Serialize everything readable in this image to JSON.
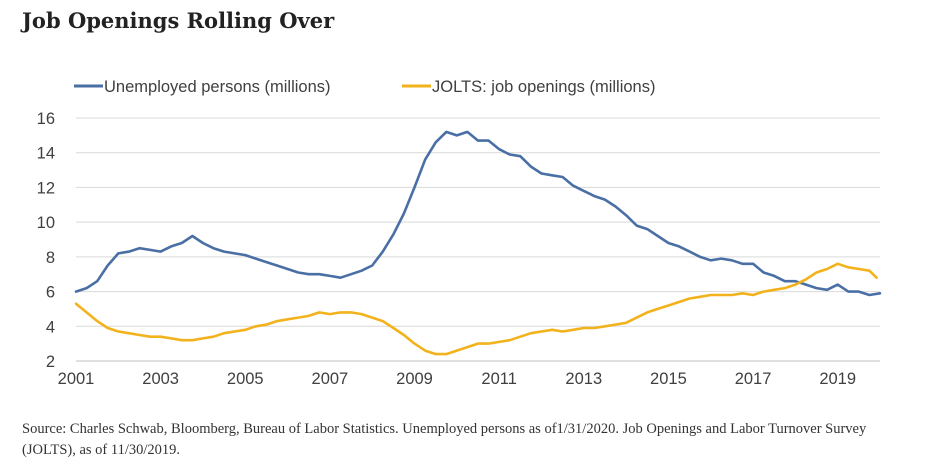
{
  "page": {
    "title": "Job Openings Rolling Over",
    "source": "Source: Charles Schwab, Bloomberg, Bureau of Labor Statistics. Unemployed persons as of1/31/2020.  Job Openings and Labor Turnover Survey (JOLTS), as of 11/30/2019."
  },
  "colors": {
    "unemployed": "#4a6fa5",
    "jolts": "#f2b21c",
    "grid": "#d9d9d9",
    "axis_text": "#404040"
  },
  "chart_data": {
    "type": "line",
    "title": "Job Openings Rolling Over",
    "xlim": [
      2001,
      2020
    ],
    "ylim": [
      2,
      16
    ],
    "x_ticks": [
      2001,
      2003,
      2005,
      2007,
      2009,
      2011,
      2013,
      2015,
      2017,
      2019
    ],
    "x_tick_labels": [
      "2001",
      "2003",
      "2005",
      "2007",
      "2009",
      "2011",
      "2013",
      "2015",
      "2017",
      "2019"
    ],
    "y_ticks": [
      2,
      4,
      6,
      8,
      10,
      12,
      14,
      16
    ],
    "y_tick_labels": [
      "2",
      "4",
      "6",
      "8",
      "10",
      "12",
      "14",
      "16"
    ],
    "grid": "horizontal",
    "legend_position": "top-left",
    "series": [
      {
        "name": "Unemployed persons (millions)",
        "color": "#4a6fa5",
        "points": [
          [
            2001.0,
            6.0
          ],
          [
            2001.25,
            6.2
          ],
          [
            2001.5,
            6.6
          ],
          [
            2001.75,
            7.5
          ],
          [
            2002.0,
            8.2
          ],
          [
            2002.25,
            8.3
          ],
          [
            2002.5,
            8.5
          ],
          [
            2002.75,
            8.4
          ],
          [
            2003.0,
            8.3
          ],
          [
            2003.25,
            8.6
          ],
          [
            2003.5,
            8.8
          ],
          [
            2003.75,
            9.2
          ],
          [
            2004.0,
            8.8
          ],
          [
            2004.25,
            8.5
          ],
          [
            2004.5,
            8.3
          ],
          [
            2004.75,
            8.2
          ],
          [
            2005.0,
            8.1
          ],
          [
            2005.25,
            7.9
          ],
          [
            2005.5,
            7.7
          ],
          [
            2005.75,
            7.5
          ],
          [
            2006.0,
            7.3
          ],
          [
            2006.25,
            7.1
          ],
          [
            2006.5,
            7.0
          ],
          [
            2006.75,
            7.0
          ],
          [
            2007.0,
            6.9
          ],
          [
            2007.25,
            6.8
          ],
          [
            2007.5,
            7.0
          ],
          [
            2007.75,
            7.2
          ],
          [
            2008.0,
            7.5
          ],
          [
            2008.25,
            8.3
          ],
          [
            2008.5,
            9.3
          ],
          [
            2008.75,
            10.5
          ],
          [
            2009.0,
            12.0
          ],
          [
            2009.25,
            13.6
          ],
          [
            2009.5,
            14.6
          ],
          [
            2009.75,
            15.2
          ],
          [
            2010.0,
            15.0
          ],
          [
            2010.25,
            15.2
          ],
          [
            2010.5,
            14.7
          ],
          [
            2010.75,
            14.7
          ],
          [
            2011.0,
            14.2
          ],
          [
            2011.25,
            13.9
          ],
          [
            2011.5,
            13.8
          ],
          [
            2011.75,
            13.2
          ],
          [
            2012.0,
            12.8
          ],
          [
            2012.25,
            12.7
          ],
          [
            2012.5,
            12.6
          ],
          [
            2012.75,
            12.1
          ],
          [
            2013.0,
            11.8
          ],
          [
            2013.25,
            11.5
          ],
          [
            2013.5,
            11.3
          ],
          [
            2013.75,
            10.9
          ],
          [
            2014.0,
            10.4
          ],
          [
            2014.25,
            9.8
          ],
          [
            2014.5,
            9.6
          ],
          [
            2014.75,
            9.2
          ],
          [
            2015.0,
            8.8
          ],
          [
            2015.25,
            8.6
          ],
          [
            2015.5,
            8.3
          ],
          [
            2015.75,
            8.0
          ],
          [
            2016.0,
            7.8
          ],
          [
            2016.25,
            7.9
          ],
          [
            2016.5,
            7.8
          ],
          [
            2016.75,
            7.6
          ],
          [
            2017.0,
            7.6
          ],
          [
            2017.25,
            7.1
          ],
          [
            2017.5,
            6.9
          ],
          [
            2017.75,
            6.6
          ],
          [
            2018.0,
            6.6
          ],
          [
            2018.25,
            6.4
          ],
          [
            2018.5,
            6.2
          ],
          [
            2018.75,
            6.1
          ],
          [
            2019.0,
            6.4
          ],
          [
            2019.25,
            6.0
          ],
          [
            2019.5,
            6.0
          ],
          [
            2019.75,
            5.8
          ],
          [
            2020.0,
            5.9
          ]
        ]
      },
      {
        "name": "JOLTS: job openings (millions)",
        "color": "#f2b21c",
        "points": [
          [
            2001.0,
            5.3
          ],
          [
            2001.25,
            4.8
          ],
          [
            2001.5,
            4.3
          ],
          [
            2001.75,
            3.9
          ],
          [
            2002.0,
            3.7
          ],
          [
            2002.25,
            3.6
          ],
          [
            2002.5,
            3.5
          ],
          [
            2002.75,
            3.4
          ],
          [
            2003.0,
            3.4
          ],
          [
            2003.25,
            3.3
          ],
          [
            2003.5,
            3.2
          ],
          [
            2003.75,
            3.2
          ],
          [
            2004.0,
            3.3
          ],
          [
            2004.25,
            3.4
          ],
          [
            2004.5,
            3.6
          ],
          [
            2004.75,
            3.7
          ],
          [
            2005.0,
            3.8
          ],
          [
            2005.25,
            4.0
          ],
          [
            2005.5,
            4.1
          ],
          [
            2005.75,
            4.3
          ],
          [
            2006.0,
            4.4
          ],
          [
            2006.25,
            4.5
          ],
          [
            2006.5,
            4.6
          ],
          [
            2006.75,
            4.8
          ],
          [
            2007.0,
            4.7
          ],
          [
            2007.25,
            4.8
          ],
          [
            2007.5,
            4.8
          ],
          [
            2007.75,
            4.7
          ],
          [
            2008.0,
            4.5
          ],
          [
            2008.25,
            4.3
          ],
          [
            2008.5,
            3.9
          ],
          [
            2008.75,
            3.5
          ],
          [
            2009.0,
            3.0
          ],
          [
            2009.25,
            2.6
          ],
          [
            2009.5,
            2.4
          ],
          [
            2009.75,
            2.4
          ],
          [
            2010.0,
            2.6
          ],
          [
            2010.25,
            2.8
          ],
          [
            2010.5,
            3.0
          ],
          [
            2010.75,
            3.0
          ],
          [
            2011.0,
            3.1
          ],
          [
            2011.25,
            3.2
          ],
          [
            2011.5,
            3.4
          ],
          [
            2011.75,
            3.6
          ],
          [
            2012.0,
            3.7
          ],
          [
            2012.25,
            3.8
          ],
          [
            2012.5,
            3.7
          ],
          [
            2012.75,
            3.8
          ],
          [
            2013.0,
            3.9
          ],
          [
            2013.25,
            3.9
          ],
          [
            2013.5,
            4.0
          ],
          [
            2013.75,
            4.1
          ],
          [
            2014.0,
            4.2
          ],
          [
            2014.25,
            4.5
          ],
          [
            2014.5,
            4.8
          ],
          [
            2014.75,
            5.0
          ],
          [
            2015.0,
            5.2
          ],
          [
            2015.25,
            5.4
          ],
          [
            2015.5,
            5.6
          ],
          [
            2015.75,
            5.7
          ],
          [
            2016.0,
            5.8
          ],
          [
            2016.25,
            5.8
          ],
          [
            2016.5,
            5.8
          ],
          [
            2016.75,
            5.9
          ],
          [
            2017.0,
            5.8
          ],
          [
            2017.25,
            6.0
          ],
          [
            2017.5,
            6.1
          ],
          [
            2017.75,
            6.2
          ],
          [
            2018.0,
            6.4
          ],
          [
            2018.25,
            6.7
          ],
          [
            2018.5,
            7.1
          ],
          [
            2018.75,
            7.3
          ],
          [
            2019.0,
            7.6
          ],
          [
            2019.25,
            7.4
          ],
          [
            2019.5,
            7.3
          ],
          [
            2019.75,
            7.2
          ],
          [
            2019.92,
            6.8
          ]
        ]
      }
    ]
  }
}
